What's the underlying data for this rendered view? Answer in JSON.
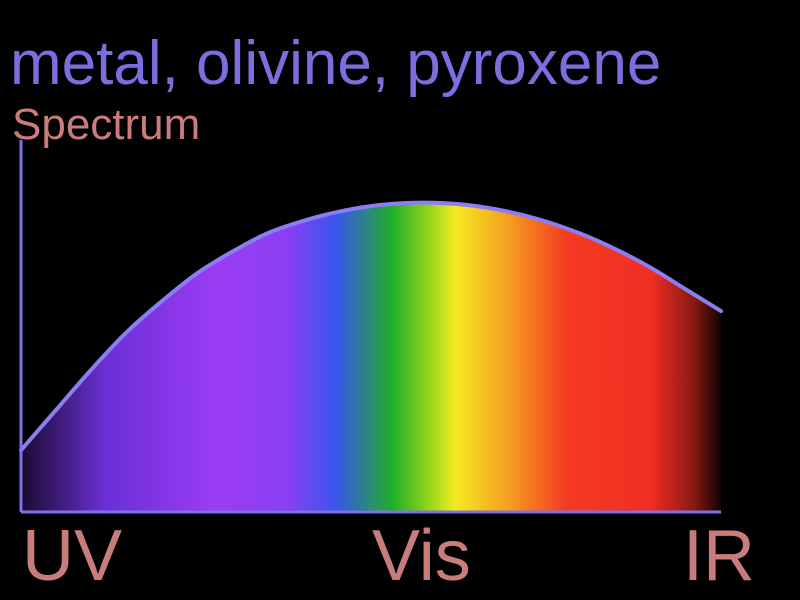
{
  "chart_data": {
    "type": "area",
    "title": "metal, olivine, pyroxene",
    "subtitle": "Spectrum",
    "xlabel": "",
    "ylabel": "",
    "x_tick_labels": [
      "UV",
      "Vis",
      "IR"
    ],
    "x_range": [
      0,
      1
    ],
    "y_range": [
      0,
      1
    ],
    "series": [
      {
        "x": [
          0.0,
          0.05,
          0.1,
          0.15,
          0.2,
          0.25,
          0.3,
          0.35,
          0.4,
          0.45,
          0.5,
          0.55,
          0.6,
          0.65,
          0.7,
          0.75,
          0.8,
          0.85,
          0.9,
          0.95,
          1.0
        ],
        "y": [
          0.2,
          0.33,
          0.46,
          0.58,
          0.68,
          0.77,
          0.84,
          0.9,
          0.94,
          0.97,
          0.99,
          1.0,
          1.0,
          0.99,
          0.97,
          0.94,
          0.9,
          0.85,
          0.79,
          0.72,
          0.65
        ]
      }
    ],
    "grid": false,
    "legend": "none",
    "colors": {
      "curve": "#8a7ef0",
      "axes": "#7f72e6",
      "title": "#7b6fe0",
      "labels": "#c97c7c",
      "spectrum_stops": [
        {
          "at": 0.0,
          "color": "#1a0b2e"
        },
        {
          "at": 0.12,
          "color": "#6a2fd6"
        },
        {
          "at": 0.28,
          "color": "#9b3cf4"
        },
        {
          "at": 0.38,
          "color": "#8a3ff2"
        },
        {
          "at": 0.45,
          "color": "#3a55ee"
        },
        {
          "at": 0.53,
          "color": "#1fae2a"
        },
        {
          "at": 0.58,
          "color": "#8bd31a"
        },
        {
          "at": 0.62,
          "color": "#f4ea22"
        },
        {
          "at": 0.7,
          "color": "#f59a20"
        },
        {
          "at": 0.78,
          "color": "#f43a22"
        },
        {
          "at": 0.9,
          "color": "#f02e22"
        },
        {
          "at": 0.96,
          "color": "#8a1a14"
        },
        {
          "at": 1.0,
          "color": "#140404"
        }
      ]
    }
  }
}
